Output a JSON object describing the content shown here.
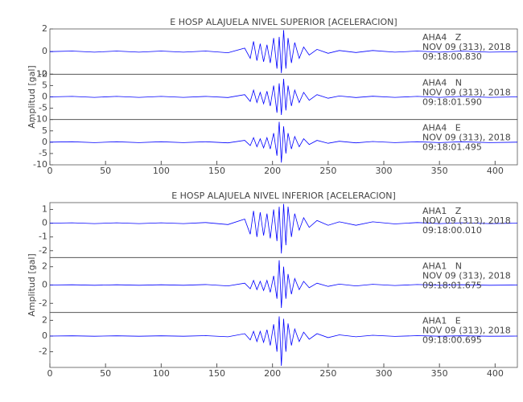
{
  "chart_data": [
    {
      "type": "line",
      "title": "E HOSP ALAJUELA NIVEL SUPERIOR [ACELERACION]",
      "ylabel": "Amplitud [gal]",
      "x": [
        0,
        20,
        40,
        60,
        80,
        100,
        120,
        140,
        160,
        175,
        180,
        183,
        186,
        189,
        192,
        195,
        198,
        201,
        204,
        206,
        208,
        210,
        212,
        214,
        217,
        220,
        224,
        228,
        233,
        240,
        250,
        260,
        275,
        290,
        310,
        330,
        350,
        370,
        395,
        420
      ],
      "xlim": [
        0,
        420
      ],
      "xticks": [
        0,
        50,
        100,
        150,
        200,
        250,
        300,
        350,
        400
      ],
      "series": [
        {
          "name": "AHA4   Z",
          "date": "NOV 09 (313), 2018",
          "time": "09:18:00.830",
          "color": "#0000ff",
          "ylim": [
            -2,
            2
          ],
          "yticks": [
            -2,
            0,
            2
          ],
          "values": [
            0,
            0.05,
            -0.05,
            0.05,
            -0.05,
            0.05,
            -0.05,
            0.05,
            -0.1,
            0.3,
            -0.6,
            0.9,
            -0.8,
            0.7,
            -0.9,
            0.6,
            -1.0,
            1.2,
            -1.5,
            1.3,
            -1.9,
            1.9,
            -1.5,
            1.2,
            -1.0,
            0.8,
            -0.6,
            0.4,
            -0.3,
            0.2,
            -0.15,
            0.1,
            -0.08,
            0.1,
            -0.05,
            0.05,
            -0.05,
            0.05,
            -0.05,
            0
          ]
        },
        {
          "name": "AHA4   N",
          "date": "NOV 09 (313), 2018",
          "time": "09:18:01.590",
          "color": "#0000ff",
          "ylim": [
            -10,
            10
          ],
          "yticks": [
            -10,
            -5,
            0,
            5,
            10
          ],
          "values": [
            0,
            0.2,
            -0.2,
            0.2,
            -0.2,
            0.2,
            -0.2,
            0.2,
            -0.3,
            1,
            -2,
            3,
            -2.5,
            2,
            -3,
            2.5,
            -4,
            5,
            -7,
            6,
            -8,
            8,
            -6,
            5,
            -4,
            3,
            -2.5,
            2,
            -1.5,
            1,
            -0.6,
            0.4,
            -0.3,
            0.3,
            -0.2,
            0.2,
            -0.2,
            0.2,
            -0.2,
            0
          ]
        },
        {
          "name": "AHA4   E",
          "date": "NOV 09 (313), 2018",
          "time": "09:18:01.495",
          "color": "#0000ff",
          "ylim": [
            -10,
            10
          ],
          "yticks": [
            -10,
            -5,
            0,
            5
          ],
          "values": [
            0,
            0.2,
            -0.2,
            0.2,
            -0.2,
            0.2,
            -0.2,
            0.2,
            -0.3,
            0.8,
            -1.5,
            2,
            -2,
            1.5,
            -2.5,
            2,
            -3,
            4,
            -6,
            9,
            -9,
            7,
            -5,
            4,
            -3,
            2.5,
            -2,
            1.5,
            -1,
            0.8,
            -0.5,
            0.4,
            -0.3,
            0.3,
            -0.2,
            0.2,
            -0.2,
            0.2,
            -0.2,
            0
          ]
        }
      ]
    },
    {
      "type": "line",
      "title": "E HOSP ALAJUELA NIVEL INFERIOR [ACELERACION]",
      "ylabel": "Amplitud [gal]",
      "x": [
        0,
        20,
        40,
        60,
        80,
        100,
        120,
        140,
        160,
        175,
        180,
        183,
        186,
        189,
        192,
        195,
        198,
        201,
        204,
        206,
        208,
        210,
        212,
        214,
        217,
        220,
        224,
        228,
        233,
        240,
        250,
        260,
        275,
        290,
        310,
        330,
        350,
        370,
        395,
        420
      ],
      "xlim": [
        0,
        420
      ],
      "xticks": [
        0,
        50,
        100,
        150,
        200,
        250,
        300,
        350,
        400
      ],
      "series": [
        {
          "name": "AHA1   Z",
          "date": "NOV 09 (313), 2018",
          "time": "09:18:00.010",
          "color": "#0000ff",
          "ylim": [
            -2.5,
            1.5
          ],
          "yticks": [
            -2,
            -1,
            0,
            1
          ],
          "values": [
            0,
            0.03,
            -0.03,
            0.03,
            -0.03,
            0.03,
            -0.03,
            0.05,
            -0.1,
            0.3,
            -0.8,
            0.9,
            -1.0,
            0.8,
            -0.9,
            0.7,
            -1.1,
            1.0,
            -1.3,
            1.2,
            -2.2,
            1.4,
            -1.6,
            1.2,
            -1.0,
            0.7,
            -0.5,
            0.4,
            -0.3,
            0.2,
            -0.15,
            0.1,
            -0.15,
            0.1,
            -0.05,
            0.05,
            -0.03,
            0.03,
            -0.03,
            0
          ]
        },
        {
          "name": "AHA1   N",
          "date": "NOV 09 (313), 2018",
          "time": "09:18:01.675",
          "color": "#0000ff",
          "ylim": [
            -3,
            3
          ],
          "yticks": [
            -2,
            0,
            2
          ],
          "values": [
            0,
            0.03,
            -0.03,
            0.03,
            -0.03,
            0.03,
            -0.03,
            0.05,
            -0.1,
            0.2,
            -0.4,
            0.5,
            -0.5,
            0.4,
            -0.6,
            0.5,
            -0.8,
            1.0,
            -1.5,
            2.7,
            -2.5,
            2.0,
            -1.5,
            1.2,
            -1.0,
            0.7,
            -0.5,
            0.4,
            -0.3,
            0.2,
            -0.15,
            0.1,
            -0.1,
            0.08,
            -0.05,
            0.05,
            -0.03,
            0.03,
            -0.03,
            0
          ]
        },
        {
          "name": "AHA1   E",
          "date": "NOV 09 (313), 2018",
          "time": "09:18:00.695",
          "color": "#0000ff",
          "ylim": [
            -4,
            3
          ],
          "yticks": [
            -2,
            0,
            2
          ],
          "values": [
            0,
            0.03,
            -0.03,
            0.03,
            -0.03,
            0.03,
            -0.03,
            0.05,
            -0.1,
            0.3,
            -0.5,
            0.6,
            -0.7,
            0.6,
            -0.8,
            0.8,
            -1.2,
            1.5,
            -2.0,
            2.5,
            -3.8,
            2.2,
            -2.0,
            1.6,
            -1.2,
            0.9,
            -0.7,
            0.5,
            -0.4,
            0.3,
            -0.2,
            0.15,
            -0.1,
            0.1,
            -0.05,
            0.05,
            -0.03,
            0.03,
            -0.03,
            0
          ]
        }
      ]
    }
  ]
}
